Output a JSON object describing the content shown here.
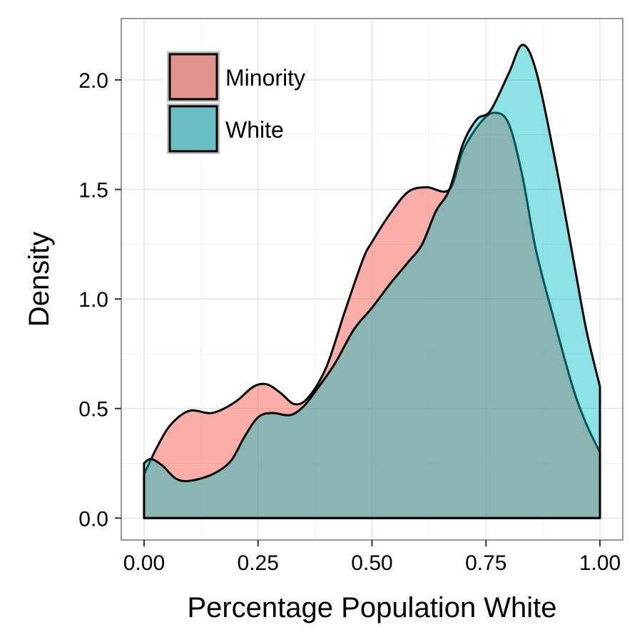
{
  "chart_data": {
    "type": "area",
    "subtype": "density",
    "xlabel": "Percentage Population White",
    "ylabel": "Density",
    "xlim": [
      -0.05,
      1.05
    ],
    "ylim": [
      -0.1,
      2.28
    ],
    "x_ticks": [
      {
        "value": 0.0,
        "label": "0.00"
      },
      {
        "value": 0.25,
        "label": "0.25"
      },
      {
        "value": 0.5,
        "label": "0.50"
      },
      {
        "value": 0.75,
        "label": "0.75"
      },
      {
        "value": 1.0,
        "label": "1.00"
      }
    ],
    "y_ticks": [
      {
        "value": 0.0,
        "label": "0.0"
      },
      {
        "value": 0.5,
        "label": "0.5"
      },
      {
        "value": 1.0,
        "label": "1.0"
      },
      {
        "value": 1.5,
        "label": "1.5"
      },
      {
        "value": 2.0,
        "label": "2.0"
      }
    ],
    "grid": true,
    "legend": {
      "position": "top-left",
      "inside": true
    },
    "series": [
      {
        "name": "Minority",
        "color": "#F8766D",
        "fill_opacity": 0.6,
        "x": [
          0.0,
          0.03,
          0.06,
          0.1,
          0.15,
          0.2,
          0.24,
          0.27,
          0.3,
          0.33,
          0.36,
          0.4,
          0.44,
          0.48,
          0.5,
          0.54,
          0.58,
          0.62,
          0.67,
          0.7,
          0.74,
          0.77,
          0.8,
          0.83,
          0.86,
          0.9,
          0.94,
          0.97,
          1.0
        ],
        "y": [
          0.2,
          0.33,
          0.43,
          0.49,
          0.48,
          0.53,
          0.6,
          0.61,
          0.57,
          0.52,
          0.55,
          0.69,
          0.94,
          1.18,
          1.26,
          1.39,
          1.49,
          1.51,
          1.5,
          1.68,
          1.81,
          1.85,
          1.8,
          1.56,
          1.22,
          0.9,
          0.6,
          0.43,
          0.3
        ]
      },
      {
        "name": "White",
        "color": "#00BFC4",
        "fill_opacity": 0.45,
        "x": [
          0.0,
          0.015,
          0.04,
          0.07,
          0.1,
          0.15,
          0.19,
          0.22,
          0.25,
          0.28,
          0.32,
          0.35,
          0.38,
          0.42,
          0.46,
          0.5,
          0.54,
          0.58,
          0.61,
          0.64,
          0.67,
          0.7,
          0.73,
          0.76,
          0.8,
          0.83,
          0.86,
          0.9,
          0.94,
          0.97,
          1.0
        ],
        "y": [
          0.25,
          0.27,
          0.24,
          0.18,
          0.17,
          0.2,
          0.26,
          0.37,
          0.46,
          0.48,
          0.47,
          0.51,
          0.59,
          0.71,
          0.86,
          0.96,
          1.07,
          1.17,
          1.25,
          1.4,
          1.5,
          1.71,
          1.82,
          1.86,
          2.03,
          2.16,
          2.04,
          1.65,
          1.2,
          0.86,
          0.6
        ]
      }
    ]
  }
}
